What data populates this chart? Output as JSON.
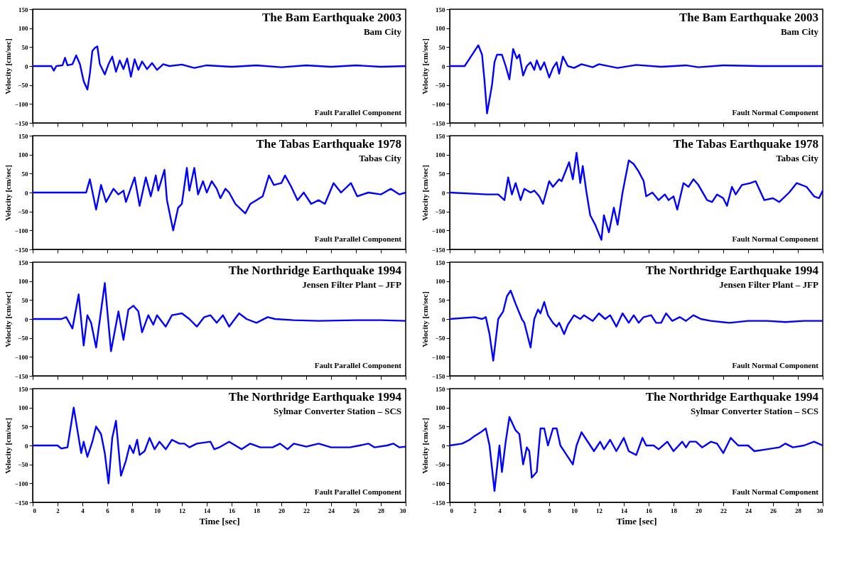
{
  "chart_data": [
    {
      "type": "line",
      "color": "#0000ff",
      "ylabel": "Velocity [cm/sec]",
      "annotations": [
        "The Bam Earthquake 2003",
        "Bam City",
        "Fault Parallel Component"
      ],
      "xlim": [
        0,
        30
      ],
      "xticks": [
        0,
        2,
        4,
        6,
        8,
        10,
        12,
        14,
        16,
        18,
        20,
        22,
        24,
        26,
        28,
        30
      ],
      "ylim": [
        -150,
        150
      ],
      "yticks": [
        -150,
        -100,
        -50,
        0,
        50,
        100,
        150
      ],
      "tick_labels": "y",
      "x": [
        0,
        1.5,
        1.7,
        1.9,
        2.4,
        2.6,
        2.8,
        3.2,
        3.5,
        3.8,
        4.1,
        4.4,
        4.6,
        4.8,
        5.0,
        5.2,
        5.4,
        5.8,
        6.1,
        6.4,
        6.7,
        7.0,
        7.3,
        7.6,
        7.9,
        8.2,
        8.5,
        8.8,
        9.2,
        9.6,
        10,
        10.5,
        11,
        12,
        13,
        14,
        16,
        18,
        20,
        22,
        24,
        26,
        28,
        30
      ],
      "values": [
        0,
        0,
        -12,
        0,
        2,
        22,
        2,
        5,
        28,
        5,
        -40,
        -62,
        -20,
        40,
        48,
        52,
        5,
        -22,
        5,
        25,
        -15,
        15,
        -8,
        20,
        -28,
        18,
        -10,
        12,
        -8,
        8,
        -10,
        5,
        0,
        4,
        -5,
        2,
        -2,
        2,
        -3,
        2,
        -2,
        2,
        -2,
        0
      ]
    },
    {
      "type": "line",
      "color": "#0000ff",
      "ylabel": "Velocity [cm/sec]",
      "annotations": [
        "The Bam Earthquake 2003",
        "Bam City",
        "Fault Normal Component"
      ],
      "xlim": [
        0,
        30
      ],
      "xticks": [
        0,
        2,
        4,
        6,
        8,
        10,
        12,
        14,
        16,
        18,
        20,
        22,
        24,
        26,
        28,
        30
      ],
      "ylim": [
        -150,
        150
      ],
      "yticks": [
        -150,
        -100,
        -50,
        0,
        50,
        100,
        150
      ],
      "tick_labels": "y",
      "x": [
        0,
        1.2,
        1.6,
        2.3,
        2.6,
        2.8,
        3.0,
        3.4,
        3.6,
        3.8,
        4.2,
        4.5,
        4.8,
        5.1,
        5.4,
        5.6,
        5.9,
        6.2,
        6.5,
        6.8,
        7.0,
        7.3,
        7.6,
        8.0,
        8.3,
        8.6,
        8.8,
        9.1,
        9.5,
        10,
        10.6,
        11.5,
        12,
        13.5,
        15,
        17,
        19,
        20,
        22,
        25,
        30
      ],
      "values": [
        0,
        0,
        20,
        55,
        30,
        -40,
        -125,
        -50,
        10,
        30,
        30,
        0,
        -35,
        45,
        20,
        30,
        -25,
        0,
        10,
        -10,
        15,
        -10,
        10,
        -30,
        -5,
        10,
        -20,
        25,
        0,
        -5,
        5,
        -3,
        5,
        -5,
        3,
        -2,
        2,
        -3,
        2,
        0,
        0
      ]
    },
    {
      "type": "line",
      "color": "#0000ff",
      "ylabel": "Velocity [cm/sec]",
      "annotations": [
        "The Tabas Earthquake 1978",
        "Tabas City",
        "Fault Parallel Component"
      ],
      "xlim": [
        0,
        30
      ],
      "xticks": [
        0,
        2,
        4,
        6,
        8,
        10,
        12,
        14,
        16,
        18,
        20,
        22,
        24,
        26,
        28,
        30
      ],
      "ylim": [
        -150,
        150
      ],
      "yticks": [
        -150,
        -100,
        -50,
        0,
        50,
        100,
        150
      ],
      "tick_labels": "y",
      "x": [
        0,
        2,
        4.3,
        4.6,
        5.1,
        5.5,
        5.9,
        6.5,
        6.9,
        7.3,
        7.5,
        8.2,
        8.6,
        9.1,
        9.5,
        9.9,
        10.1,
        10.6,
        10.8,
        11.3,
        11.7,
        12.0,
        12.4,
        12.6,
        13.0,
        13.3,
        13.7,
        14.0,
        14.4,
        14.8,
        15.1,
        15.5,
        15.8,
        16.3,
        17.1,
        17.5,
        18,
        18.5,
        19.0,
        19.4,
        20,
        20.3,
        20.8,
        21.3,
        21.8,
        22.4,
        23.0,
        23.5,
        24.2,
        24.8,
        25.6,
        26.1,
        27,
        28,
        28.8,
        29.5,
        30
      ],
      "values": [
        0,
        0,
        0,
        35,
        -45,
        20,
        -25,
        10,
        -5,
        5,
        -25,
        40,
        -35,
        40,
        -10,
        45,
        5,
        60,
        -20,
        -100,
        -40,
        -30,
        65,
        5,
        65,
        -5,
        30,
        0,
        30,
        10,
        -15,
        10,
        0,
        -30,
        -55,
        -30,
        -20,
        -10,
        45,
        20,
        25,
        45,
        15,
        -20,
        0,
        -30,
        -20,
        -30,
        25,
        0,
        25,
        -10,
        0,
        -5,
        10,
        -5,
        0
      ]
    },
    {
      "type": "line",
      "color": "#0000ff",
      "ylabel": "Velocity [cm/sec]",
      "annotations": [
        "The Tabas Earthquake 1978",
        "Tabas City",
        "Fault Normal Component"
      ],
      "xlim": [
        0,
        30
      ],
      "xticks": [
        0,
        2,
        4,
        6,
        8,
        10,
        12,
        14,
        16,
        18,
        20,
        22,
        24,
        26,
        28,
        30
      ],
      "ylim": [
        -150,
        150
      ],
      "yticks": [
        -150,
        -100,
        -50,
        0,
        50,
        100,
        150
      ],
      "tick_labels": "y",
      "x": [
        0,
        3,
        3.9,
        4.4,
        4.7,
        5.0,
        5.3,
        5.7,
        6.0,
        6.5,
        6.8,
        7.2,
        7.5,
        8.0,
        8.3,
        8.8,
        9.0,
        9.6,
        9.9,
        10.2,
        10.5,
        10.7,
        11.0,
        11.3,
        11.7,
        12.2,
        12.4,
        12.8,
        13.2,
        13.5,
        13.9,
        14.4,
        14.8,
        15.2,
        15.6,
        15.8,
        16.3,
        16.8,
        17.3,
        17.6,
        18.0,
        18.3,
        18.8,
        19.2,
        19.6,
        20.0,
        20.7,
        21.1,
        21.5,
        22.0,
        22.3,
        22.7,
        23.0,
        23.5,
        24.2,
        24.6,
        25.3,
        26.0,
        26.5,
        27.3,
        27.9,
        28.7,
        29.3,
        29.7,
        30
      ],
      "values": [
        0,
        -5,
        -5,
        -20,
        40,
        -5,
        25,
        -20,
        10,
        0,
        5,
        -10,
        -30,
        30,
        15,
        35,
        30,
        80,
        35,
        105,
        25,
        70,
        0,
        -60,
        -85,
        -125,
        -60,
        -105,
        -40,
        -85,
        0,
        85,
        75,
        55,
        30,
        -10,
        0,
        -20,
        -5,
        -20,
        -10,
        -45,
        25,
        15,
        35,
        20,
        -20,
        -25,
        -5,
        -15,
        -35,
        15,
        -5,
        20,
        25,
        30,
        -20,
        -15,
        -25,
        0,
        25,
        15,
        -10,
        -15,
        5
      ]
    },
    {
      "type": "line",
      "color": "#0000ff",
      "ylabel": "Velocity [cm/sec]",
      "annotations": [
        "The Northridge Earthquake 1994",
        "Jensen Filter Plant – JFP",
        "Fault Parallel Component"
      ],
      "xlim": [
        0,
        30
      ],
      "xticks": [
        0,
        2,
        4,
        6,
        8,
        10,
        12,
        14,
        16,
        18,
        20,
        22,
        24,
        26,
        28,
        30
      ],
      "ylim": [
        -150,
        150
      ],
      "yticks": [
        -150,
        -100,
        -50,
        0,
        50,
        100,
        150
      ],
      "tick_labels": "y",
      "x": [
        0,
        2.3,
        2.7,
        3.2,
        3.7,
        4.1,
        4.4,
        4.7,
        5.1,
        5.8,
        6.3,
        6.9,
        7.3,
        7.7,
        8.1,
        8.5,
        8.8,
        9.3,
        9.7,
        10.0,
        10.7,
        11.2,
        12,
        12.6,
        13.2,
        13.8,
        14.3,
        14.8,
        15.3,
        15.8,
        16.6,
        17.2,
        18,
        18.9,
        19.5,
        21,
        23,
        26,
        28,
        30
      ],
      "values": [
        0,
        0,
        5,
        -25,
        65,
        -70,
        10,
        -10,
        -75,
        95,
        -85,
        20,
        -55,
        25,
        35,
        20,
        -35,
        10,
        -15,
        10,
        -20,
        10,
        15,
        0,
        -20,
        5,
        10,
        -10,
        10,
        -20,
        15,
        0,
        -10,
        5,
        0,
        -3,
        -5,
        -3,
        -3,
        -5
      ]
    },
    {
      "type": "line",
      "color": "#0000ff",
      "ylabel": "Velocity [cm/sec]",
      "annotations": [
        "The Northridge Earthquake 1994",
        "Jensen Filter Plant – JFP",
        "Fault Normal Component"
      ],
      "xlim": [
        0,
        30
      ],
      "xticks": [
        0,
        2,
        4,
        6,
        8,
        10,
        12,
        14,
        16,
        18,
        20,
        22,
        24,
        26,
        28,
        30
      ],
      "ylim": [
        -150,
        150
      ],
      "yticks": [
        -150,
        -100,
        -50,
        0,
        50,
        100,
        150
      ],
      "tick_labels": "y",
      "x": [
        0,
        2,
        2.6,
        2.9,
        3.2,
        3.5,
        3.9,
        4.3,
        4.6,
        4.9,
        5.3,
        5.8,
        6.0,
        6.5,
        6.8,
        7.1,
        7.3,
        7.6,
        7.9,
        8.3,
        8.6,
        8.8,
        9.2,
        9.5,
        10.0,
        10.5,
        10.8,
        11.5,
        12.0,
        12.5,
        12.9,
        13.4,
        13.9,
        14.4,
        14.8,
        15.2,
        15.6,
        16.2,
        16.6,
        17.0,
        17.4,
        17.9,
        18.5,
        19.0,
        19.6,
        20.2,
        21,
        22.5,
        24,
        25.5,
        27,
        28.5,
        30
      ],
      "values": [
        0,
        5,
        0,
        5,
        -40,
        -110,
        0,
        20,
        60,
        75,
        40,
        0,
        -10,
        -75,
        0,
        25,
        15,
        45,
        10,
        -10,
        -20,
        -10,
        -40,
        -15,
        10,
        0,
        10,
        -5,
        15,
        0,
        10,
        -20,
        15,
        -10,
        10,
        -10,
        5,
        10,
        -10,
        -10,
        15,
        -5,
        5,
        -5,
        10,
        0,
        -5,
        -10,
        -5,
        -5,
        -8,
        -5,
        -5
      ]
    },
    {
      "type": "line",
      "color": "#0000ff",
      "ylabel": "Velocity [cm/sec]",
      "xlabel": "Time [sec]",
      "annotations": [
        "The Northridge Earthquake 1994",
        "Sylmar Converter Station – SCS",
        "Fault Parallel Component"
      ],
      "xlim": [
        0,
        30
      ],
      "xticks": [
        0,
        2,
        4,
        6,
        8,
        10,
        12,
        14,
        16,
        18,
        20,
        22,
        24,
        26,
        28,
        30
      ],
      "ylim": [
        -150,
        150
      ],
      "yticks": [
        -150,
        -100,
        -50,
        0,
        50,
        100,
        150
      ],
      "x": [
        0,
        2,
        2.3,
        2.8,
        3.3,
        3.9,
        4.1,
        4.4,
        4.8,
        5.1,
        5.5,
        5.8,
        6.1,
        6.4,
        6.7,
        7.1,
        7.5,
        7.8,
        8.1,
        8.4,
        8.6,
        9.0,
        9.4,
        9.8,
        10.2,
        10.7,
        11.2,
        11.8,
        12.2,
        12.6,
        13.2,
        14.3,
        14.6,
        15,
        15.8,
        16.8,
        17.5,
        18.3,
        19.3,
        19.9,
        20.5,
        21,
        22,
        23,
        24,
        25.5,
        26.3,
        27,
        27.5,
        28.5,
        29,
        29.5,
        30
      ],
      "values": [
        0,
        0,
        -8,
        -5,
        100,
        -20,
        10,
        -30,
        10,
        50,
        30,
        -20,
        -100,
        20,
        65,
        -80,
        -40,
        0,
        -20,
        15,
        -25,
        -15,
        20,
        -10,
        10,
        -10,
        15,
        5,
        5,
        -5,
        5,
        10,
        -10,
        -5,
        10,
        -10,
        5,
        -5,
        -5,
        5,
        -10,
        5,
        -3,
        5,
        -5,
        -5,
        0,
        5,
        -5,
        0,
        5,
        -5,
        -3
      ]
    },
    {
      "type": "line",
      "color": "#0000ff",
      "ylabel": "Velocity [cm/sec]",
      "xlabel": "Time [sec]",
      "annotations": [
        "The Northridge Earthquake 1994",
        "Sylmar Converter Station – SCS",
        "Fault Normal Component"
      ],
      "xlim": [
        0,
        30
      ],
      "xticks": [
        0,
        2,
        4,
        6,
        8,
        10,
        12,
        14,
        16,
        18,
        20,
        22,
        24,
        26,
        28,
        30
      ],
      "ylim": [
        -150,
        150
      ],
      "yticks": [
        -150,
        -100,
        -50,
        0,
        50,
        100,
        150
      ],
      "x": [
        0,
        1,
        1.6,
        2.0,
        2.5,
        2.9,
        3.2,
        3.6,
        3.8,
        4.0,
        4.2,
        4.5,
        4.8,
        5.3,
        5.6,
        5.9,
        6.2,
        6.4,
        6.6,
        7.0,
        7.3,
        7.6,
        7.9,
        8.3,
        8.6,
        8.9,
        9.3,
        9.9,
        10.2,
        10.6,
        11.0,
        11.6,
        12.1,
        12.4,
        12.9,
        13.4,
        14.0,
        14.4,
        15.0,
        15.5,
        15.8,
        16.4,
        16.8,
        17.5,
        18.0,
        18.7,
        19.0,
        19.3,
        19.8,
        20.3,
        21.0,
        21.5,
        22.0,
        22.6,
        23.2,
        24,
        24.5,
        25.5,
        26.5,
        27.0,
        27.6,
        28.5,
        29.3,
        30
      ],
      "values": [
        0,
        5,
        15,
        25,
        35,
        45,
        0,
        -120,
        -60,
        0,
        -70,
        10,
        75,
        40,
        30,
        -50,
        -5,
        -15,
        -85,
        -70,
        45,
        45,
        0,
        45,
        45,
        0,
        -20,
        -50,
        0,
        35,
        15,
        -15,
        10,
        -10,
        15,
        -15,
        20,
        -15,
        -25,
        20,
        0,
        0,
        -10,
        10,
        -15,
        10,
        -5,
        10,
        10,
        -5,
        10,
        5,
        -20,
        20,
        0,
        0,
        -15,
        -10,
        -5,
        5,
        -5,
        0,
        10,
        0
      ]
    }
  ]
}
